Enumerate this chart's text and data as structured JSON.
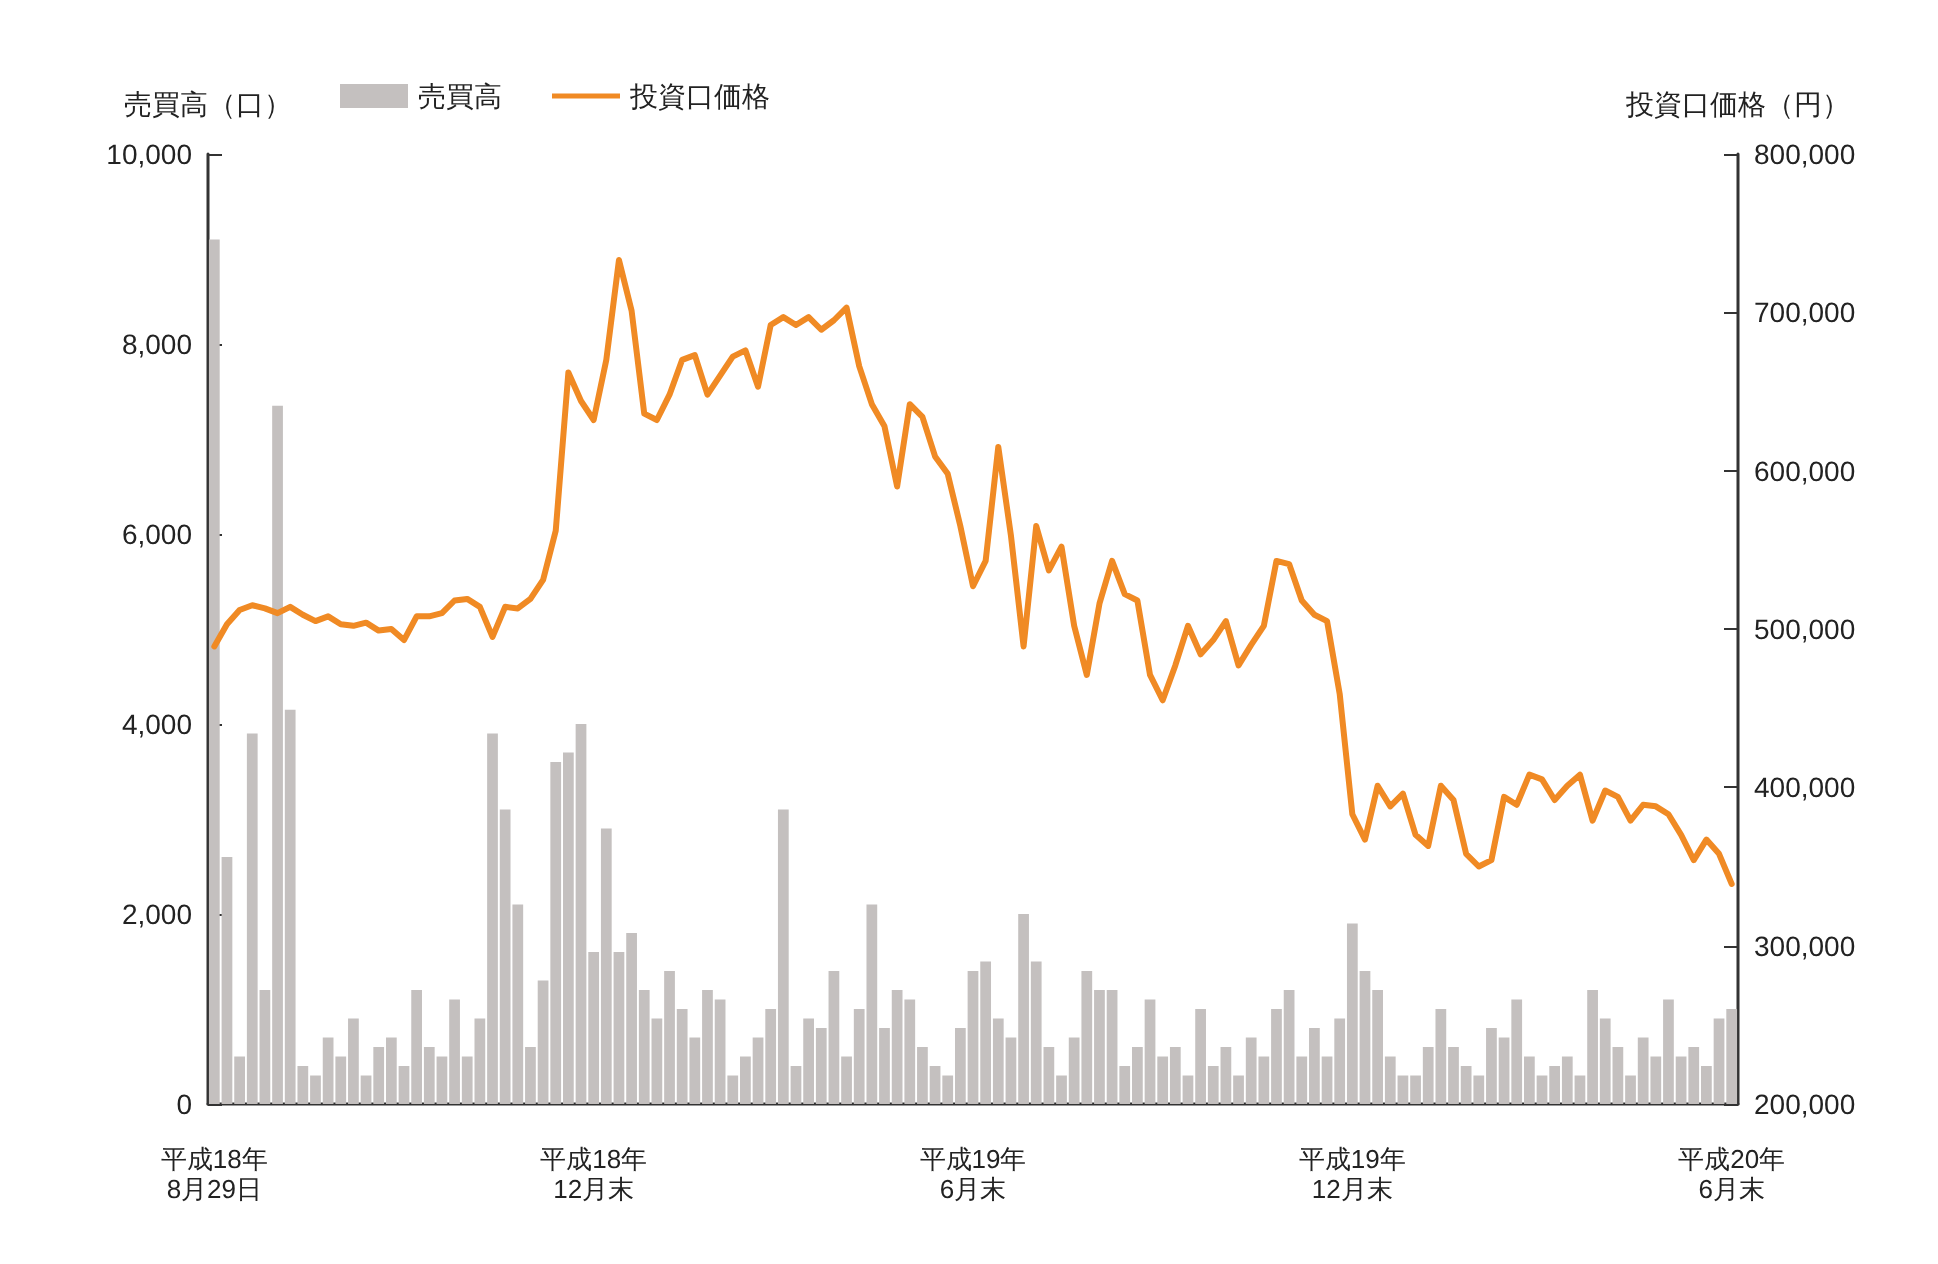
{
  "chart_data": {
    "type": "bar",
    "ylabel": "売買高（口）",
    "y2label": "投資口価格（円）",
    "categories": [
      "平成18年\n8月29日",
      null,
      null,
      null,
      null,
      null,
      null,
      null,
      null,
      null,
      null,
      null,
      null,
      null,
      null,
      null,
      null,
      null,
      null,
      null,
      null,
      null,
      null,
      null,
      null,
      null,
      null,
      null,
      null,
      null,
      "平成18年\n12月末",
      null,
      null,
      null,
      null,
      null,
      null,
      null,
      null,
      null,
      null,
      null,
      null,
      null,
      null,
      null,
      null,
      null,
      null,
      null,
      null,
      null,
      null,
      null,
      null,
      null,
      null,
      null,
      null,
      null,
      "平成19年\n6月末",
      null,
      null,
      null,
      null,
      null,
      null,
      null,
      null,
      null,
      null,
      null,
      null,
      null,
      null,
      null,
      null,
      null,
      null,
      null,
      null,
      null,
      null,
      null,
      null,
      null,
      null,
      null,
      null,
      null,
      "平成19年\n12月末",
      null,
      null,
      null,
      null,
      null,
      null,
      null,
      null,
      null,
      null,
      null,
      null,
      null,
      null,
      null,
      null,
      null,
      null,
      null,
      null,
      null,
      null,
      null,
      null,
      null,
      null,
      null,
      null,
      null,
      "平成20年\n6月末"
    ],
    "series": [
      {
        "name": "売買高",
        "color": "#c4c0bf",
        "values": [
          9100,
          2600,
          500,
          3900,
          1200,
          7350,
          4150,
          400,
          300,
          700,
          500,
          900,
          300,
          600,
          700,
          400,
          1200,
          600,
          500,
          1100,
          500,
          900,
          3900,
          3100,
          2100,
          600,
          1300,
          3600,
          3700,
          4000,
          1600,
          2900,
          1600,
          1800,
          1200,
          900,
          1400,
          1000,
          700,
          1200,
          1100,
          300,
          500,
          700,
          1000,
          3100,
          400,
          900,
          800,
          1400,
          500,
          1000,
          2100,
          800,
          1200,
          1100,
          600,
          400,
          300,
          800,
          1400,
          1500,
          900,
          700,
          2000,
          1500,
          600,
          300,
          700,
          1400,
          1200,
          1200,
          400,
          600,
          1100,
          500,
          600,
          300,
          1000,
          400,
          600,
          300,
          700,
          500,
          1000,
          1200,
          500,
          800,
          500,
          900,
          1900,
          1400,
          1200,
          500,
          300,
          300,
          600,
          1000,
          600,
          400,
          300,
          800,
          700,
          1100,
          500,
          300,
          400,
          500,
          300,
          1200,
          900,
          600,
          300,
          700,
          500,
          1100,
          500,
          600,
          400,
          900,
          1000
        ]
      },
      {
        "name": "投資口価格",
        "type": "line",
        "axis": "y2",
        "color": "#f08a24",
        "values": [
          489000,
          503000,
          512000,
          515000,
          513000,
          510000,
          514000,
          509000,
          505000,
          508000,
          503000,
          502000,
          504000,
          499000,
          500000,
          493000,
          508000,
          508000,
          510000,
          518000,
          519000,
          514000,
          495000,
          514000,
          513000,
          519000,
          531000,
          562000,
          662000,
          644000,
          632000,
          670000,
          733000,
          701000,
          636000,
          632000,
          648000,
          670000,
          673000,
          648000,
          660000,
          672000,
          676000,
          653000,
          692000,
          697000,
          692000,
          697000,
          689000,
          695000,
          703000,
          666000,
          642000,
          628000,
          590000,
          642000,
          634000,
          609000,
          598000,
          565000,
          527000,
          543000,
          615000,
          559000,
          489000,
          565000,
          537000,
          552000,
          502000,
          471000,
          516000,
          543000,
          522000,
          518000,
          471000,
          455000,
          477000,
          502000,
          484000,
          493000,
          505000,
          477000,
          490000,
          502000,
          543000,
          541000,
          518000,
          509000,
          505000,
          459000,
          383000,
          367000,
          401000,
          388000,
          396000,
          370000,
          363000,
          401000,
          392000,
          358000,
          350000,
          354000,
          394000,
          389000,
          408000,
          405000,
          392000,
          401000,
          408000,
          379000,
          398000,
          394000,
          379000,
          389000,
          388000,
          383000,
          370000,
          354000,
          367000,
          358000,
          339000
        ]
      }
    ],
    "ylim": [
      0,
      10000
    ],
    "yticks": [
      0,
      {
        "value": 2000,
        "label": "2,000"
      },
      {
        "value": 4000,
        "label": "4,000"
      },
      {
        "value": 6000,
        "label": "6,000"
      },
      {
        "value": 8000,
        "label": "8,000"
      },
      {
        "value": 10000,
        "label": "10,000"
      }
    ],
    "y2lim": [
      200000,
      800000
    ],
    "y2ticks": [
      {
        "value": 200000,
        "label": "200,000"
      },
      {
        "value": 300000,
        "label": "300,000"
      },
      {
        "value": 400000,
        "label": "400,000"
      },
      {
        "value": 500000,
        "label": "500,000"
      },
      {
        "value": 600000,
        "label": "600,000"
      },
      {
        "value": 700000,
        "label": "700,000"
      },
      {
        "value": 800000,
        "label": "800,000"
      }
    ],
    "grid": false,
    "legend": "top",
    "marker": "none",
    "line_style": "solid"
  }
}
